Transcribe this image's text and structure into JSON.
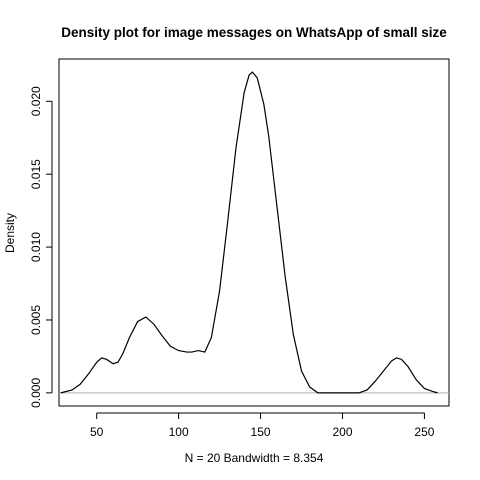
{
  "chart_data": {
    "type": "line",
    "title": "Density plot for image messages on WhatsApp of small size",
    "xlabel": "N = 20   Bandwidth = 8.354",
    "ylabel": "Density",
    "xlim": [
      27,
      265
    ],
    "ylim": [
      -0.0009,
      0.0229
    ],
    "x_ticks": [
      50,
      100,
      150,
      200,
      250
    ],
    "y_ticks": [
      0.0,
      0.005,
      0.01,
      0.015,
      0.02
    ],
    "x_tick_labels": [
      "50",
      "100",
      "150",
      "200",
      "250"
    ],
    "y_tick_labels": [
      "0.000",
      "0.005",
      "0.010",
      "0.015",
      "0.020"
    ],
    "baseline_y": 0,
    "series": [
      {
        "x": [
          28,
          35,
          40,
          45,
          50,
          53,
          56,
          60,
          63,
          66,
          70,
          75,
          80,
          85,
          90,
          95,
          100,
          105,
          108,
          112,
          116,
          120,
          125,
          130,
          135,
          140,
          143,
          145,
          148,
          152,
          155,
          160,
          165,
          170,
          175,
          180,
          185,
          190,
          195,
          200,
          205,
          210,
          215,
          220,
          225,
          230,
          233,
          236,
          240,
          245,
          250,
          255,
          258
        ],
        "y": [
          0.0,
          0.0002,
          0.0006,
          0.0013,
          0.0021,
          0.0024,
          0.0023,
          0.002,
          0.0021,
          0.0027,
          0.0038,
          0.0049,
          0.0052,
          0.0047,
          0.0039,
          0.0032,
          0.0029,
          0.0028,
          0.0028,
          0.0029,
          0.0028,
          0.0038,
          0.007,
          0.0118,
          0.0168,
          0.0206,
          0.0218,
          0.022,
          0.0216,
          0.0198,
          0.0176,
          0.0128,
          0.008,
          0.004,
          0.0015,
          0.0004,
          0.0,
          0.0,
          0.0,
          0.0,
          0.0,
          0.0,
          0.0002,
          0.0008,
          0.0015,
          0.0022,
          0.0024,
          0.0023,
          0.0018,
          0.0009,
          0.0003,
          0.0001,
          0.0
        ]
      }
    ]
  }
}
